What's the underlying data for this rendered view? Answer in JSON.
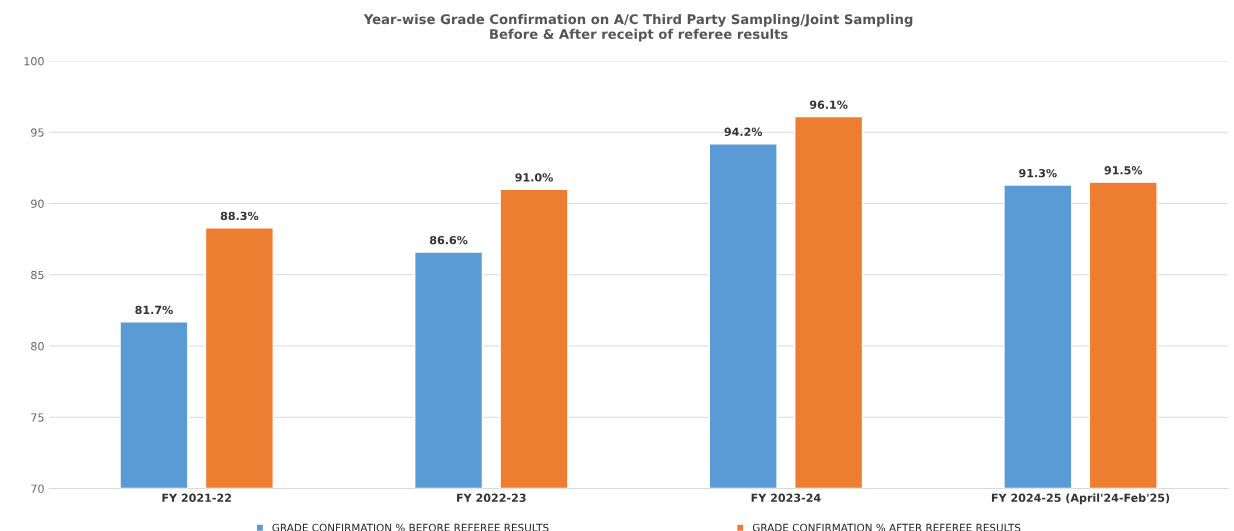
{
  "chart_data": {
    "type": "bar",
    "title": "Year-wise Grade Confirmation on A/C Third Party Sampling/Joint Sampling\nBefore & After receipt of referee results",
    "categories": [
      "FY 2021-22",
      "FY 2022-23",
      "FY 2023-24",
      "FY 2024-25 (April'24-Feb'25)"
    ],
    "series": [
      {
        "name": "GRADE CONFIRMATION % BEFORE REFEREE RESULTS",
        "color": "#5b9bd5",
        "values": [
          81.7,
          86.6,
          94.2,
          91.3
        ],
        "value_labels": [
          "81.7%",
          "86.6%",
          "94.2%",
          "91.3%"
        ]
      },
      {
        "name": "GRADE CONFIRMATION % AFTER REFEREE RESULTS",
        "color": "#ed7d31",
        "values": [
          88.3,
          91.0,
          96.1,
          91.5
        ],
        "value_labels": [
          "88.3%",
          "91.0%",
          "96.1%",
          "91.5%"
        ]
      }
    ],
    "ylim": [
      70,
      100
    ],
    "yticks": [
      70,
      75,
      80,
      85,
      90,
      95,
      100
    ],
    "grid": "y",
    "legend": "bottom"
  }
}
